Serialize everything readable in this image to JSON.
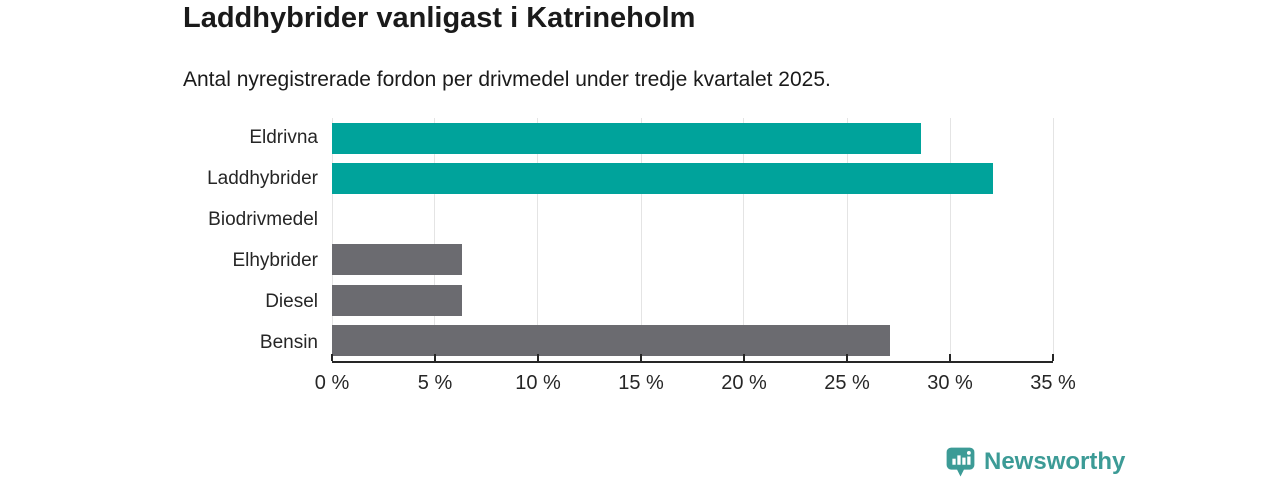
{
  "header": {
    "title": "Laddhybrider vanligast i Katrineholm",
    "subtitle": "Antal nyregistrerade fordon per drivmedel under tredje kvartalet 2025."
  },
  "chart_data": {
    "type": "bar",
    "orientation": "horizontal",
    "title": "Laddhybrider vanligast i Katrineholm",
    "subtitle": "Antal nyregistrerade fordon per drivmedel under tredje kvartalet 2025.",
    "categories": [
      "Eldrivna",
      "Laddhybrider",
      "Biodrivmedel",
      "Elhybrider",
      "Diesel",
      "Bensin"
    ],
    "values": [
      28.6,
      32.1,
      0,
      6.3,
      6.3,
      27.1
    ],
    "bar_colors": [
      "#00a39b",
      "#00a39b",
      "#00a39b",
      "#6b6b70",
      "#6b6b70",
      "#6b6b70"
    ],
    "unit": "%",
    "xlim": [
      0,
      35
    ],
    "x_tick_values": [
      0,
      5,
      10,
      15,
      20,
      25,
      30,
      35
    ],
    "x_tick_labels": [
      "0 %",
      "5 %",
      "10 %",
      "15 %",
      "20 %",
      "25 %",
      "30 %",
      "35 %"
    ],
    "grid": true,
    "legend": false
  },
  "branding": {
    "logo_text": "Newsworthy",
    "logo_icon": "newsworthy-pin-bar-chart-icon"
  },
  "colors": {
    "accent_teal": "#00a39b",
    "neutral_gray": "#6b6b70",
    "axis": "#262626",
    "gridline": "#e4e4e4",
    "text": "#1a1a1a",
    "brand_teal": "#3c9b96",
    "background": "#ffffff"
  }
}
